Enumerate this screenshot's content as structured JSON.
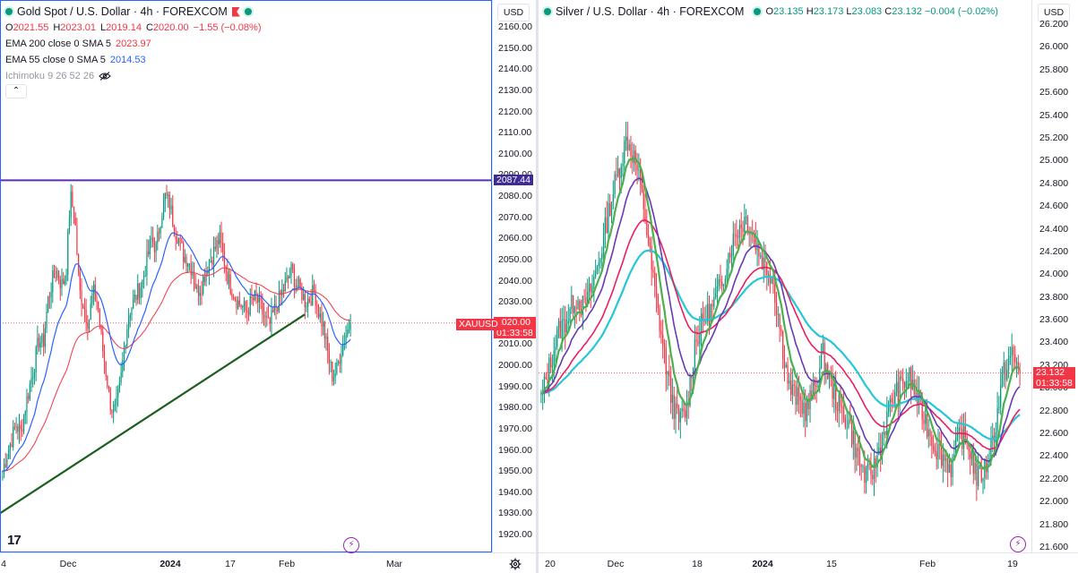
{
  "gold": {
    "title": "Gold Spot / U.S. Dollar · 4h · FOREXCOM",
    "ohlc": {
      "o_label": "O",
      "o": "2021.55",
      "h_label": "H",
      "h": "2023.01",
      "l_label": "L",
      "l": "2019.14",
      "c_label": "C",
      "c": "2020.00",
      "change": "−1.55 (−0.08%)"
    },
    "indicators": [
      {
        "label": "EMA 200 close 0 SMA 5",
        "value": "2023.97",
        "color": "#f23645"
      },
      {
        "label": "EMA 55 close 0 SMA 5",
        "value": "2014.53",
        "color": "#2962ff"
      },
      {
        "label": "Ichimoku 9 26 52 26",
        "value": "",
        "color": "#9598a1"
      }
    ],
    "currency": "USD",
    "price_ticks": [
      "2160.00",
      "2150.00",
      "2140.00",
      "2130.00",
      "2120.00",
      "2110.00",
      "2100.00",
      "2090.00",
      "2080.00",
      "2070.00",
      "2060.00",
      "2050.00",
      "2040.00",
      "2030.00",
      "2020.00",
      "2010.00",
      "2000.00",
      "1990.00",
      "1980.00",
      "1970.00",
      "1960.00",
      "1950.00",
      "1940.00",
      "1930.00",
      "1920.00"
    ],
    "time_ticks": [
      {
        "label": "4",
        "bold": false
      },
      {
        "label": "Dec",
        "bold": false
      },
      {
        "label": "2024",
        "bold": true
      },
      {
        "label": "17",
        "bold": false
      },
      {
        "label": "Feb",
        "bold": false
      },
      {
        "label": "Mar",
        "bold": false
      }
    ],
    "horizontal_line_label": "2087.44",
    "symbol_badge": "XAUUSD",
    "price_badge": "2020.00",
    "countdown": "01:33:58",
    "colors": {
      "up": "#089981",
      "down": "#f23645",
      "ema55": "#2962ff",
      "ema200": "#f23645",
      "hline": "#5b2fb5",
      "trendline": "#1b5e20"
    }
  },
  "silver": {
    "title": "Silver / U.S. Dollar · 4h · FOREXCOM",
    "ohlc": {
      "o_label": "O",
      "o": "23.135",
      "h_label": "H",
      "h": "23.173",
      "l_label": "L",
      "l": "23.083",
      "c_label": "C",
      "c": "23.132",
      "change": "−0.004 (−0.02%)"
    },
    "currency": "USD",
    "price_ticks": [
      "26.200",
      "26.000",
      "25.800",
      "25.600",
      "25.400",
      "25.200",
      "25.000",
      "24.800",
      "24.600",
      "24.400",
      "24.200",
      "24.000",
      "23.800",
      "23.600",
      "23.400",
      "23.200",
      "23.000",
      "22.800",
      "22.600",
      "22.400",
      "22.200",
      "22.000",
      "21.800",
      "21.600"
    ],
    "time_ticks": [
      {
        "label": "20",
        "bold": false
      },
      {
        "label": "Dec",
        "bold": false
      },
      {
        "label": "18",
        "bold": false
      },
      {
        "label": "2024",
        "bold": true
      },
      {
        "label": "15",
        "bold": false
      },
      {
        "label": "Feb",
        "bold": false
      },
      {
        "label": "19",
        "bold": false
      }
    ],
    "price_badge": "23.132",
    "countdown": "01:33:58",
    "colors": {
      "up": "#089981",
      "down": "#f23645",
      "ma_green": "#4caf50",
      "ma_purple": "#673ab7",
      "ma_red": "#e91e63",
      "ma_cyan": "#26c6da"
    }
  },
  "chart_data": [
    {
      "type": "candlestick",
      "symbol": "XAUUSD",
      "timeframe": "4h",
      "ylim": [
        1915,
        2165
      ],
      "x_range": [
        "2023-11-01",
        "2024-03-05"
      ],
      "closes": [
        1950,
        1958,
        1965,
        1972,
        1968,
        1980,
        1990,
        2000,
        2012,
        2010,
        2030,
        2040,
        2045,
        2038,
        2042,
        2080,
        2070,
        2035,
        2028,
        2020,
        2035,
        2030,
        2010,
        1995,
        1980,
        1978,
        1990,
        2010,
        2025,
        2030,
        2035,
        2040,
        2050,
        2060,
        2055,
        2070,
        2080,
        2076,
        2065,
        2060,
        2052,
        2050,
        2045,
        2035,
        2038,
        2045,
        2050,
        2055,
        2060,
        2050,
        2040,
        2035,
        2030,
        2028,
        2025,
        2030,
        2032,
        2028,
        2022,
        2018,
        2025,
        2030,
        2035,
        2040,
        2045,
        2038,
        2035,
        2030,
        2032,
        2035,
        2025,
        2018,
        2005,
        1995,
        1998,
        2008,
        2015,
        2020
      ],
      "ema55_end": 2014.53,
      "ema200_end": 2023.97,
      "horizontal_line": 2087.44,
      "last_price": 2020.0
    },
    {
      "type": "candlestick",
      "symbol": "XAGUSD",
      "timeframe": "4h",
      "ylim": [
        21.5,
        26.3
      ],
      "x_range": [
        "2023-11-13",
        "2024-02-20"
      ],
      "closes": [
        22.9,
        23.2,
        23.5,
        23.6,
        23.8,
        23.7,
        23.9,
        24.2,
        24.6,
        24.9,
        25.2,
        25.0,
        24.6,
        24.0,
        23.5,
        23.0,
        22.7,
        22.8,
        23.4,
        23.6,
        23.7,
        23.9,
        24.2,
        24.4,
        24.5,
        24.3,
        24.1,
        24.0,
        23.5,
        23.0,
        22.9,
        22.8,
        23.0,
        23.3,
        23.0,
        22.8,
        22.7,
        22.4,
        22.2,
        22.3,
        22.6,
        22.9,
        23.0,
        23.1,
        22.9,
        22.7,
        22.5,
        22.4,
        22.3,
        22.6,
        22.5,
        22.2,
        22.3,
        22.6,
        23.1,
        23.3,
        23.132
      ],
      "last_price": 23.132
    }
  ]
}
